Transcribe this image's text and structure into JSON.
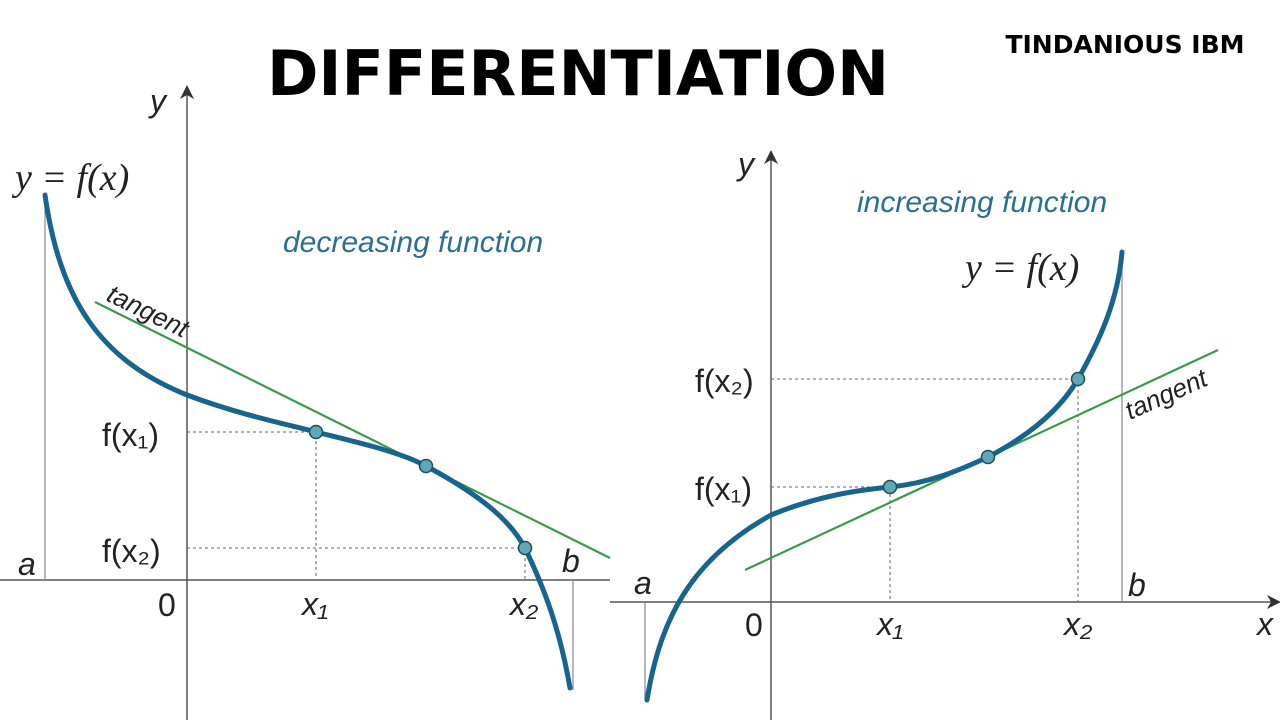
{
  "header": {
    "title": "DIFFERENTIATION",
    "brand": "TINDANIOUS IBM"
  },
  "left": {
    "y_axis": "y",
    "function": "y = f(x)",
    "caption": "decreasing function",
    "tangent": "tangent",
    "fx1": "f(x₁)",
    "fx2": "f(x₂)",
    "a": "a",
    "b": "b",
    "origin": "0",
    "x1": "x₁",
    "x2": "x₂"
  },
  "right": {
    "y_axis": "y",
    "x_axis": "x",
    "function": "y = f(x)",
    "caption": "increasing function",
    "tangent": "tangent",
    "fx1": "f(x₁)",
    "fx2": "f(x₂)",
    "a": "a",
    "b": "b",
    "origin": "0",
    "x1": "x₁",
    "x2": "x₂"
  }
}
